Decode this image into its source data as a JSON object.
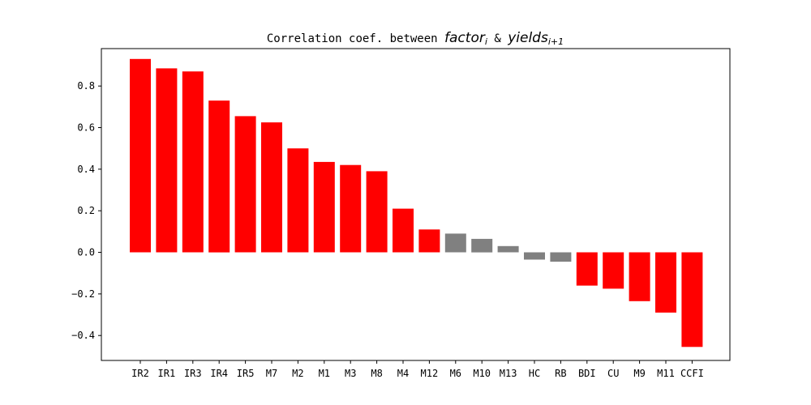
{
  "chart_data": {
    "type": "bar",
    "title": {
      "prefix": "Correlation coef. between ",
      "var1": "factor",
      "var1_sub": "i",
      "joiner": " & ",
      "var2": "yields",
      "var2_sub": "i+1"
    },
    "xlabel": "",
    "ylabel": "",
    "categories": [
      "IR2",
      "IR1",
      "IR3",
      "IR4",
      "IR5",
      "M7",
      "M2",
      "M1",
      "M3",
      "M8",
      "M4",
      "M12",
      "M6",
      "M10",
      "M13",
      "HC",
      "RB",
      "BDI",
      "CU",
      "M9",
      "M11",
      "CCFI"
    ],
    "values": [
      0.93,
      0.885,
      0.87,
      0.73,
      0.655,
      0.625,
      0.5,
      0.435,
      0.42,
      0.39,
      0.21,
      0.11,
      0.09,
      0.065,
      0.03,
      -0.035,
      -0.045,
      -0.16,
      -0.175,
      -0.235,
      -0.29,
      -0.455
    ],
    "bar_colors": [
      "#ff0000",
      "#ff0000",
      "#ff0000",
      "#ff0000",
      "#ff0000",
      "#ff0000",
      "#ff0000",
      "#ff0000",
      "#ff0000",
      "#ff0000",
      "#ff0000",
      "#ff0000",
      "#808080",
      "#808080",
      "#808080",
      "#808080",
      "#808080",
      "#ff0000",
      "#ff0000",
      "#ff0000",
      "#ff0000",
      "#ff0000"
    ],
    "yticks": [
      "-0.4",
      "-0.2",
      "0.0",
      "0.2",
      "0.4",
      "0.6",
      "0.8"
    ],
    "ylim": [
      -0.52,
      0.98
    ],
    "grid": false,
    "legend": "none"
  }
}
